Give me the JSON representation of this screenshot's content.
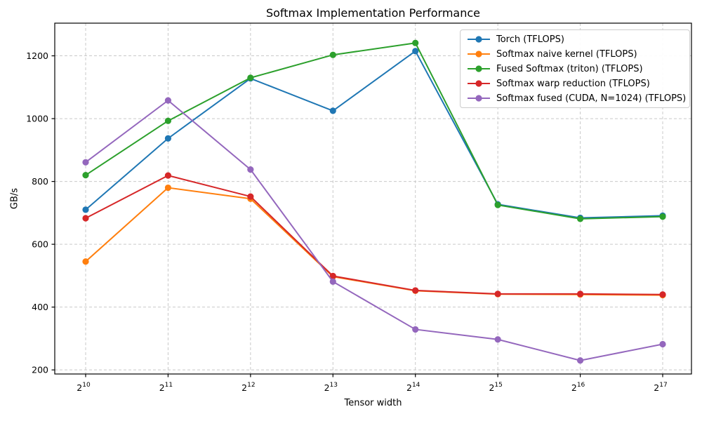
{
  "chart_data": {
    "type": "line",
    "title": "Softmax Implementation Performance",
    "xlabel": "Tensor width",
    "ylabel": "GB/s",
    "x_base": 2,
    "x_exponents": [
      10,
      11,
      12,
      13,
      14,
      15,
      16,
      17
    ],
    "y_ticks": [
      200,
      400,
      600,
      800,
      1000,
      1200
    ],
    "ylim": [
      187,
      1304
    ],
    "grid": true,
    "grid_style": "dashed",
    "legend_position": "upper right",
    "series": [
      {
        "name": "Torch (TFLOPS)",
        "color": "#1f77b4",
        "values": [
          710,
          937,
          1128,
          1025,
          1215,
          727,
          684,
          691
        ]
      },
      {
        "name": "Softmax naive kernel (TFLOPS)",
        "color": "#ff7f0e",
        "values": [
          545,
          780,
          745,
          497,
          452,
          441,
          440,
          438
        ]
      },
      {
        "name": "Fused Softmax (triton) (TFLOPS)",
        "color": "#2ca02c",
        "values": [
          820,
          993,
          1130,
          1203,
          1241,
          725,
          681,
          688
        ]
      },
      {
        "name": "Softmax warp reduction (TFLOPS)",
        "color": "#d62728",
        "values": [
          683,
          819,
          752,
          499,
          453,
          442,
          442,
          440
        ]
      },
      {
        "name": "Softmax fused (CUDA, N=1024) (TFLOPS)",
        "color": "#9467bd",
        "values": [
          861,
          1058,
          838,
          481,
          329,
          297,
          230,
          282
        ]
      }
    ]
  },
  "style_colors": {
    "grid": "#c9c9c9",
    "spine": "#000000",
    "tick_label": "#000000",
    "legend_border": "#cccccc",
    "background": "#ffffff"
  }
}
